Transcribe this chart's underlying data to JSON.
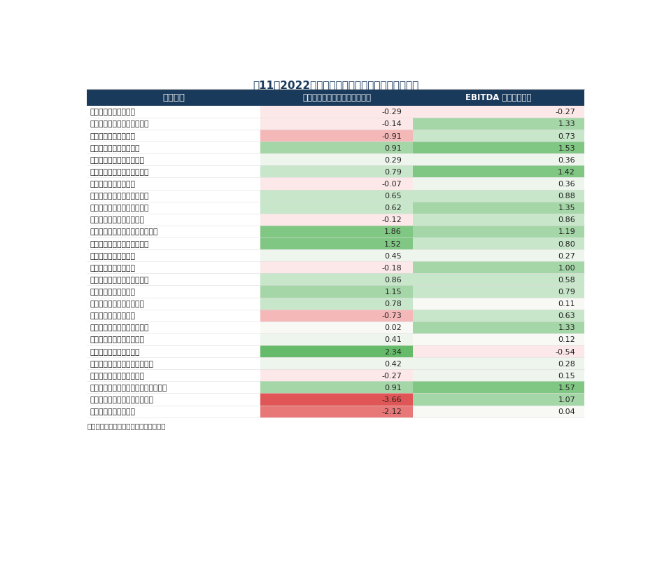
{
  "title": "表11：2022年样本企业偿债表现情况对比表（倍）",
  "header_col1": "公司名称",
  "header_col2": "经营活动净现金流利息覆盖倍数",
  "header_col3": "EBITDA 利息保障倍数",
  "source": "资料来源：企业预警通，中诚信国际整理",
  "header_bg": "#1a3a5c",
  "header_text_color": "#ffffff",
  "rows": [
    {
      "name": "沈阳地铁集团有限公司",
      "v1": -0.29,
      "v2": -0.27
    },
    {
      "name": "北京市基础设施投资有限公司",
      "v1": -0.14,
      "v2": 1.33
    },
    {
      "name": "广州地铁集团有限公司",
      "v1": -0.91,
      "v2": 0.73
    },
    {
      "name": "深圳市地铁集团有限公司",
      "v1": 0.91,
      "v2": 1.53
    },
    {
      "name": "天津轨道交通集团有限公司",
      "v1": 0.29,
      "v2": 0.36
    },
    {
      "name": "杭州市地铁集团有限责任公司",
      "v1": 0.79,
      "v2": 1.42
    },
    {
      "name": "南京地铁集团有限公司",
      "v1": -0.07,
      "v2": 0.36
    },
    {
      "name": "宁波市轨道交通集团有限公司",
      "v1": 0.65,
      "v2": 0.88
    },
    {
      "name": "苏州市轨道交通集团有限公司",
      "v1": 0.62,
      "v2": 1.35
    },
    {
      "name": "成都轨道交通集团有限公司",
      "v1": -0.12,
      "v2": 0.86
    },
    {
      "name": "重庆市轨道交通（集团）有限公司",
      "v1": 1.86,
      "v2": 1.19
    },
    {
      "name": "长沙市轨道交通集团有限公司",
      "v1": 1.52,
      "v2": 0.8
    },
    {
      "name": "武汉地铁集团有限公司",
      "v1": 0.45,
      "v2": 0.27
    },
    {
      "name": "青岛地铁集团有限公司",
      "v1": -0.18,
      "v2": 1.0
    },
    {
      "name": "西安市轨道交通集团有限公司",
      "v1": 0.86,
      "v2": 0.58
    },
    {
      "name": "福州地铁集团有限公司",
      "v1": 1.15,
      "v2": 0.79
    },
    {
      "name": "昆明轨道交通集团有限公司",
      "v1": 0.78,
      "v2": 0.11
    },
    {
      "name": "无锡地铁集团有限公司",
      "v1": -0.73,
      "v2": 0.63
    },
    {
      "name": "长春市轨道交通集团有限公司",
      "v1": 0.02,
      "v2": 1.33
    },
    {
      "name": "南昌轨道交通集团有限公司",
      "v1": 0.41,
      "v2": 0.12
    },
    {
      "name": "兰州市轨道交通有限公司",
      "v1": 2.34,
      "v2": -0.54
    },
    {
      "name": "南宁轨道交通集团有限责任公司",
      "v1": 0.42,
      "v2": 0.28
    },
    {
      "name": "济南轨道交通集团有限公司",
      "v1": -0.27,
      "v2": 0.15
    },
    {
      "name": "贵阳市公共交通投资运营集团有限公司",
      "v1": 0.91,
      "v2": 1.57
    },
    {
      "name": "厦门轨道建设发展集团有限公司",
      "v1": -3.66,
      "v2": 1.07
    },
    {
      "name": "常州地铁集团有限公司",
      "v1": -2.12,
      "v2": 0.04
    }
  ]
}
